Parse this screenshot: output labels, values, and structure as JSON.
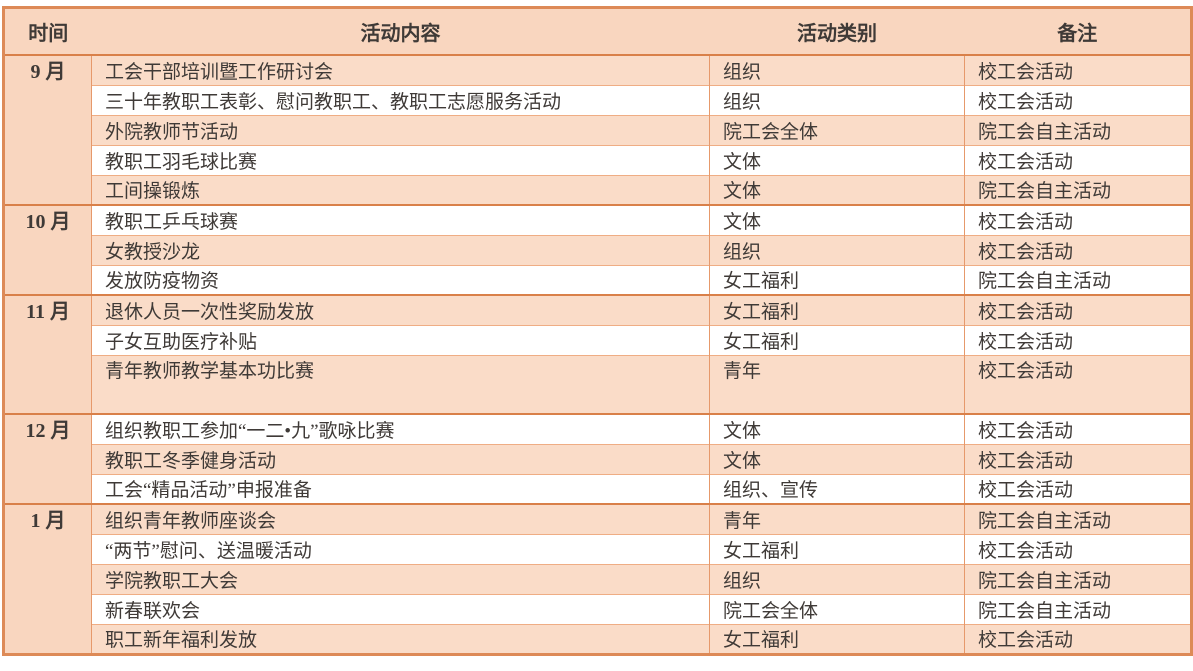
{
  "colors": {
    "header_fill": "#f9d6bf",
    "band_fill": "#fadcc8",
    "white_fill": "#ffffff",
    "outer_border": "#dd8a57",
    "section_border": "#d98049",
    "row_border": "#efad84",
    "column_border": "#e6996b",
    "text": "#3f3a37"
  },
  "table": {
    "columns": [
      {
        "label": "时间"
      },
      {
        "label": "活动内容"
      },
      {
        "label": "活动类别"
      },
      {
        "label": "备注"
      }
    ],
    "sections": [
      {
        "month": "9 月",
        "rows": [
          {
            "content": "工会干部培训暨工作研讨会",
            "category": "组织",
            "note": "校工会活动"
          },
          {
            "content": "三十年教职工表彰、慰问教职工、教职工志愿服务活动",
            "category": "组织",
            "note": "校工会活动"
          },
          {
            "content": "外院教师节活动",
            "category": "院工会全体",
            "note": "院工会自主活动"
          },
          {
            "content": "教职工羽毛球比赛",
            "category": "文体",
            "note": "校工会活动"
          },
          {
            "content": "工间操锻炼",
            "category": "文体",
            "note": "院工会自主活动"
          }
        ]
      },
      {
        "month": "10 月",
        "rows": [
          {
            "content": "教职工乒乓球赛",
            "category": "文体",
            "note": "校工会活动"
          },
          {
            "content": "女教授沙龙",
            "category": "组织",
            "note": "校工会活动"
          },
          {
            "content": "发放防疫物资",
            "category": "女工福利",
            "note": "院工会自主活动"
          }
        ]
      },
      {
        "month": "11 月",
        "rows": [
          {
            "content": "退休人员一次性奖励发放",
            "category": "女工福利",
            "note": "校工会活动"
          },
          {
            "content": "子女互助医疗补贴",
            "category": "女工福利",
            "note": "校工会活动"
          },
          {
            "content": "青年教师教学基本功比赛",
            "category": "青年",
            "note": "校工会活动",
            "tall": true
          }
        ]
      },
      {
        "month": "12 月",
        "rows": [
          {
            "content": "组织教职工参加“一二•九”歌咏比赛",
            "category": "文体",
            "note": "校工会活动"
          },
          {
            "content": "教职工冬季健身活动",
            "category": "文体",
            "note": "校工会活动"
          },
          {
            "content": "工会“精品活动”申报准备",
            "category": "组织、宣传",
            "note": "校工会活动"
          }
        ]
      },
      {
        "month": "1 月",
        "rows": [
          {
            "content": "组织青年教师座谈会",
            "category": "青年",
            "note": "院工会自主活动"
          },
          {
            "content": "“两节”慰问、送温暖活动",
            "category": "女工福利",
            "note": "校工会活动"
          },
          {
            "content": "学院教职工大会",
            "category": "组织",
            "note": "院工会自主活动"
          },
          {
            "content": "新春联欢会",
            "category": "院工会全体",
            "note": "院工会自主活动"
          },
          {
            "content": "职工新年福利发放",
            "category": "女工福利",
            "note": "校工会活动"
          }
        ]
      }
    ]
  }
}
